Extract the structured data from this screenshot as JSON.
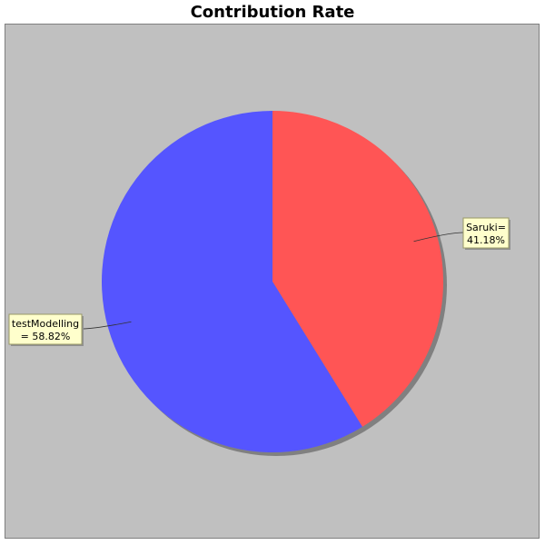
{
  "chart_data": {
    "type": "pie",
    "title": "Contribution Rate",
    "slices": [
      {
        "name": "Saruki",
        "value": 41.18,
        "label_line1": "Saruki=",
        "label_line2": "41.18%",
        "color": "#ff5555"
      },
      {
        "name": "testModelling",
        "value": 58.82,
        "label_line1": "testModelling",
        "label_line2": "= 58.82%",
        "color": "#5555ff"
      }
    ],
    "colors": {
      "background": "#c0c0c0",
      "label_box": "#ffffcc",
      "label_border": "#999966",
      "shadow": "#808080"
    }
  }
}
